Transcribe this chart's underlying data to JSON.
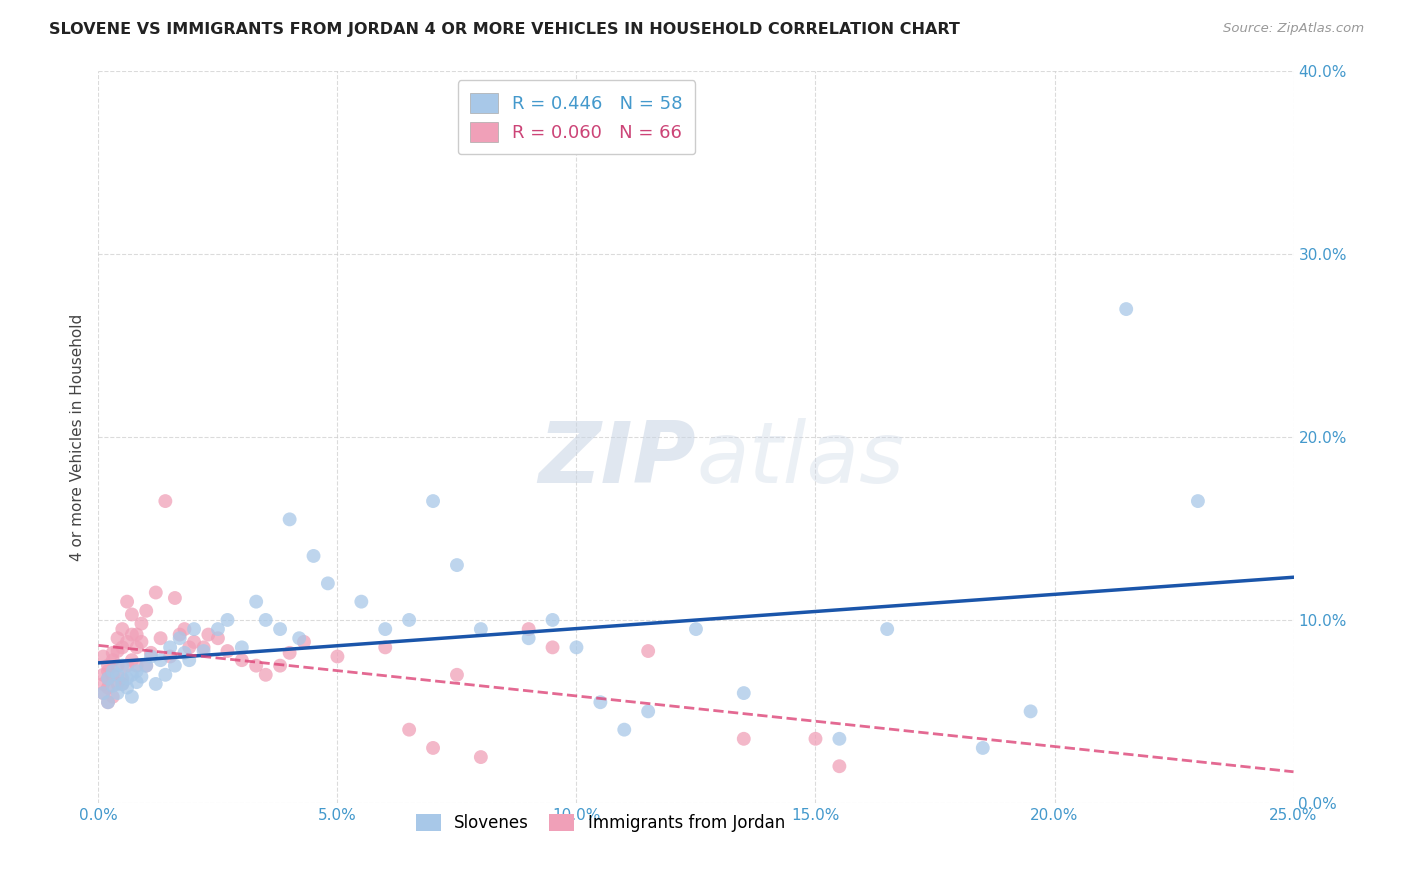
{
  "title": "SLOVENE VS IMMIGRANTS FROM JORDAN 4 OR MORE VEHICLES IN HOUSEHOLD CORRELATION CHART",
  "source": "Source: ZipAtlas.com",
  "ylabel": "4 or more Vehicles in Household",
  "xlim": [
    0.0,
    0.25
  ],
  "ylim": [
    0.0,
    0.4
  ],
  "xticks": [
    0.0,
    0.05,
    0.1,
    0.15,
    0.2,
    0.25
  ],
  "yticks": [
    0.0,
    0.1,
    0.2,
    0.3,
    0.4
  ],
  "xtick_labels": [
    "0.0%",
    "5.0%",
    "10.0%",
    "15.0%",
    "20.0%",
    "25.0%"
  ],
  "ytick_labels": [
    "0.0%",
    "10.0%",
    "20.0%",
    "30.0%",
    "40.0%"
  ],
  "slovene_R": 0.446,
  "slovene_N": 58,
  "jordan_R": 0.06,
  "jordan_N": 66,
  "slovene_color": "#a8c8e8",
  "jordan_color": "#f0a0b8",
  "slovene_line_color": "#1a55aa",
  "jordan_line_color": "#dd4477",
  "background_color": "#ffffff",
  "slovene_x": [
    0.001,
    0.002,
    0.002,
    0.003,
    0.003,
    0.004,
    0.004,
    0.005,
    0.005,
    0.006,
    0.006,
    0.007,
    0.007,
    0.008,
    0.008,
    0.009,
    0.01,
    0.011,
    0.012,
    0.013,
    0.014,
    0.015,
    0.016,
    0.017,
    0.018,
    0.019,
    0.02,
    0.022,
    0.025,
    0.027,
    0.03,
    0.033,
    0.035,
    0.038,
    0.04,
    0.042,
    0.045,
    0.048,
    0.055,
    0.06,
    0.065,
    0.07,
    0.075,
    0.08,
    0.09,
    0.095,
    0.1,
    0.105,
    0.11,
    0.115,
    0.125,
    0.135,
    0.155,
    0.165,
    0.185,
    0.195,
    0.215,
    0.23
  ],
  "slovene_y": [
    0.06,
    0.068,
    0.055,
    0.072,
    0.064,
    0.07,
    0.06,
    0.075,
    0.065,
    0.063,
    0.068,
    0.07,
    0.058,
    0.072,
    0.066,
    0.069,
    0.075,
    0.08,
    0.065,
    0.078,
    0.07,
    0.085,
    0.075,
    0.09,
    0.082,
    0.078,
    0.095,
    0.083,
    0.095,
    0.1,
    0.085,
    0.11,
    0.1,
    0.095,
    0.155,
    0.09,
    0.135,
    0.12,
    0.11,
    0.095,
    0.1,
    0.165,
    0.13,
    0.095,
    0.09,
    0.1,
    0.085,
    0.055,
    0.04,
    0.05,
    0.095,
    0.06,
    0.035,
    0.095,
    0.03,
    0.05,
    0.27,
    0.165
  ],
  "jordan_x": [
    0.001,
    0.001,
    0.001,
    0.001,
    0.002,
    0.002,
    0.002,
    0.002,
    0.002,
    0.003,
    0.003,
    0.003,
    0.003,
    0.004,
    0.004,
    0.004,
    0.004,
    0.005,
    0.005,
    0.005,
    0.005,
    0.006,
    0.006,
    0.006,
    0.007,
    0.007,
    0.007,
    0.008,
    0.008,
    0.008,
    0.009,
    0.009,
    0.01,
    0.01,
    0.011,
    0.012,
    0.013,
    0.014,
    0.015,
    0.016,
    0.017,
    0.018,
    0.019,
    0.02,
    0.022,
    0.023,
    0.025,
    0.027,
    0.03,
    0.033,
    0.035,
    0.038,
    0.04,
    0.043,
    0.05,
    0.06,
    0.065,
    0.07,
    0.075,
    0.08,
    0.09,
    0.095,
    0.115,
    0.135,
    0.15,
    0.155
  ],
  "jordan_y": [
    0.07,
    0.065,
    0.08,
    0.06,
    0.068,
    0.075,
    0.063,
    0.072,
    0.055,
    0.07,
    0.078,
    0.082,
    0.058,
    0.065,
    0.075,
    0.083,
    0.09,
    0.068,
    0.085,
    0.095,
    0.065,
    0.088,
    0.075,
    0.11,
    0.092,
    0.103,
    0.078,
    0.085,
    0.075,
    0.092,
    0.088,
    0.098,
    0.105,
    0.075,
    0.082,
    0.115,
    0.09,
    0.165,
    0.08,
    0.112,
    0.092,
    0.095,
    0.085,
    0.088,
    0.085,
    0.092,
    0.09,
    0.083,
    0.078,
    0.075,
    0.07,
    0.075,
    0.082,
    0.088,
    0.08,
    0.085,
    0.04,
    0.03,
    0.07,
    0.025,
    0.095,
    0.085,
    0.083,
    0.035,
    0.035,
    0.02
  ]
}
